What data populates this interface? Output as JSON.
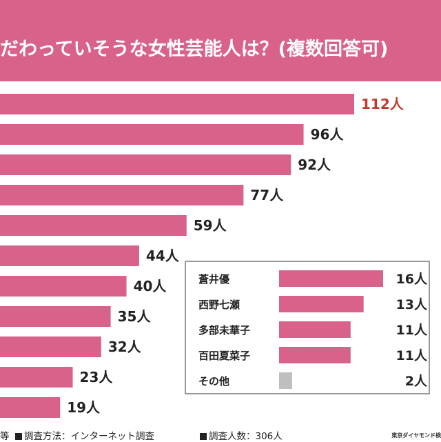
{
  "title": "だわっていそうな女性芸能人は？(複数回答可)",
  "chart_data": {
    "type": "bar",
    "orientation": "horizontal",
    "main": {
      "values": [
        112,
        96,
        92,
        77,
        59,
        44,
        40,
        35,
        32,
        23,
        19
      ],
      "value_labels": [
        "112人",
        "96人",
        "92人",
        "77人",
        "59人",
        "44人",
        "40人",
        "35人",
        "32人",
        "23人",
        "19人"
      ]
    },
    "inset": {
      "categories": [
        "蒼井優",
        "西野七瀬",
        "多部未華子",
        "百田夏菜子",
        "その他"
      ],
      "values": [
        16,
        13,
        11,
        11,
        2
      ],
      "value_labels": [
        "16人",
        "13人",
        "11人",
        "11人",
        "2人"
      ]
    }
  },
  "colors": {
    "bar": "#d9628a",
    "title_bg": "#d9628a",
    "highlight_label": "#c0392b",
    "other_bar": "#bfbfbf",
    "text": "#222222"
  },
  "footer": {
    "partial": "等",
    "method": "調査方法：インターネット調査",
    "count": "調査人数：306人",
    "credit": "東京ダイヤモンド検"
  }
}
